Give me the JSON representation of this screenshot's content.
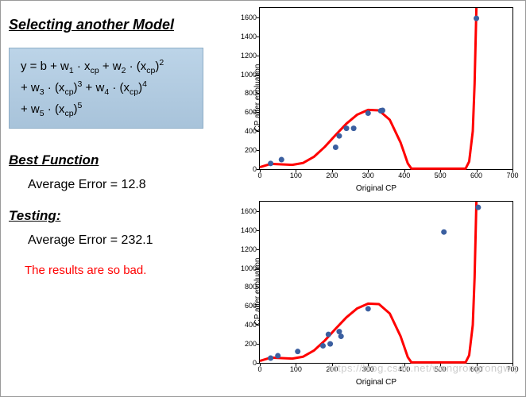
{
  "left": {
    "title": "Selecting another Model",
    "equation_html": "y = b + w<sub>1</sub> · x<sub>cp</sub> + w<sub>2</sub> · (x<sub>cp</sub>)<sup>2</sup><br>+ w<sub>3</sub> · (x<sub>cp</sub>)<sup>3</sup> + w<sub>4</sub> · (x<sub>cp</sub>)<sup>4</sup><br>+ w<sub>5</sub> · (x<sub>cp</sub>)<sup>5</sup>",
    "best_heading": "Best Function",
    "best_error": "Average Error = 12.8",
    "test_heading": "Testing:",
    "test_error": "Average Error = 232.1",
    "bad": "The results are so bad."
  },
  "style": {
    "curve_color": "#ff0000",
    "curve_width": 3,
    "point_color": "#3b5fa0",
    "point_radius": 3.5,
    "axis_color": "#000000",
    "font_tick": 9
  },
  "chart_top": {
    "xlabel": "Original CP",
    "ylabel": "CP after evoluation",
    "xlim": [
      0,
      700
    ],
    "ylim": [
      0,
      1700
    ],
    "xticks": [
      0,
      100,
      200,
      300,
      400,
      500,
      600,
      700
    ],
    "yticks": [
      0,
      200,
      400,
      600,
      800,
      1000,
      1200,
      1400,
      1600
    ],
    "curve": [
      [
        0,
        20
      ],
      [
        30,
        55
      ],
      [
        60,
        50
      ],
      [
        90,
        45
      ],
      [
        120,
        65
      ],
      [
        150,
        130
      ],
      [
        180,
        235
      ],
      [
        210,
        360
      ],
      [
        240,
        480
      ],
      [
        270,
        575
      ],
      [
        300,
        625
      ],
      [
        330,
        620
      ],
      [
        360,
        520
      ],
      [
        390,
        280
      ],
      [
        410,
        60
      ],
      [
        420,
        5
      ],
      [
        570,
        5
      ],
      [
        580,
        80
      ],
      [
        590,
        400
      ],
      [
        595,
        900
      ],
      [
        600,
        1700
      ]
    ],
    "points": [
      [
        30,
        60
      ],
      [
        60,
        100
      ],
      [
        210,
        230
      ],
      [
        220,
        350
      ],
      [
        240,
        430
      ],
      [
        260,
        430
      ],
      [
        300,
        590
      ],
      [
        335,
        615
      ],
      [
        340,
        620
      ],
      [
        600,
        1590
      ]
    ]
  },
  "chart_bottom": {
    "xlabel": "Original CP",
    "ylabel": "CP after evoluation",
    "xlim": [
      0,
      700
    ],
    "ylim": [
      0,
      1700
    ],
    "xticks": [
      0,
      100,
      200,
      300,
      400,
      500,
      600,
      700
    ],
    "yticks": [
      0,
      200,
      400,
      600,
      800,
      1000,
      1200,
      1400,
      1600
    ],
    "curve": [
      [
        0,
        20
      ],
      [
        30,
        55
      ],
      [
        60,
        50
      ],
      [
        90,
        45
      ],
      [
        120,
        65
      ],
      [
        150,
        130
      ],
      [
        180,
        235
      ],
      [
        210,
        360
      ],
      [
        240,
        480
      ],
      [
        270,
        575
      ],
      [
        300,
        625
      ],
      [
        330,
        620
      ],
      [
        360,
        520
      ],
      [
        390,
        280
      ],
      [
        410,
        60
      ],
      [
        420,
        5
      ],
      [
        570,
        5
      ],
      [
        580,
        80
      ],
      [
        590,
        400
      ],
      [
        595,
        900
      ],
      [
        600,
        1700
      ]
    ],
    "points": [
      [
        30,
        50
      ],
      [
        50,
        75
      ],
      [
        105,
        120
      ],
      [
        175,
        180
      ],
      [
        190,
        300
      ],
      [
        195,
        200
      ],
      [
        220,
        330
      ],
      [
        225,
        280
      ],
      [
        300,
        570
      ],
      [
        510,
        1380
      ],
      [
        605,
        1640
      ]
    ]
  },
  "watermark": "https://blog.csdn.net/wangrongrongwq"
}
